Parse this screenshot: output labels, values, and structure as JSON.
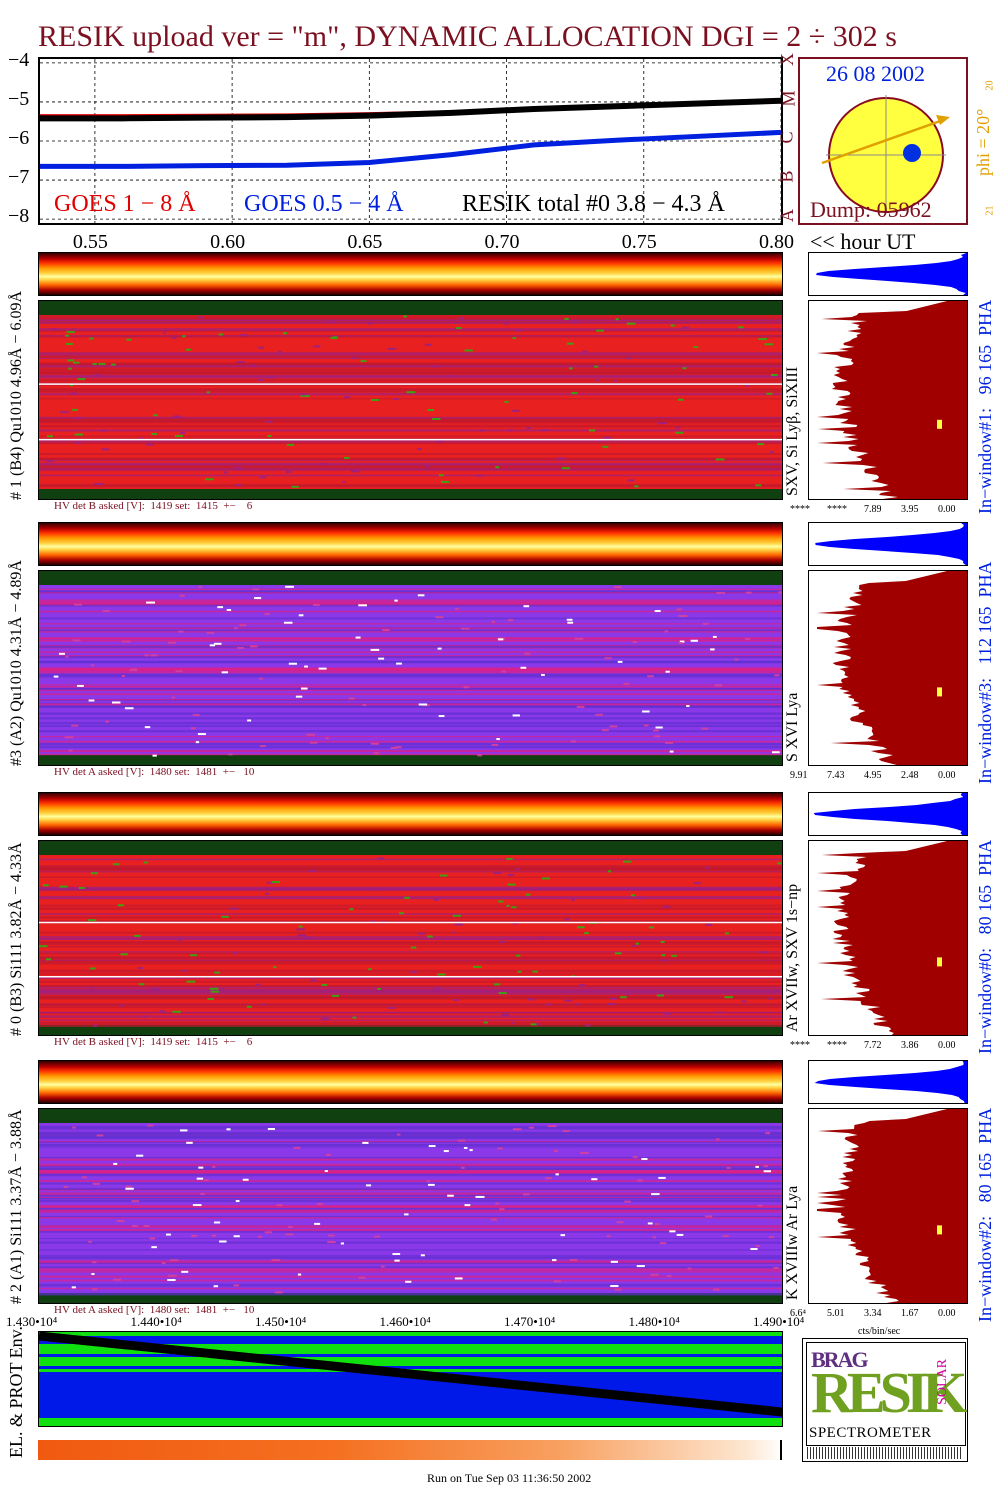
{
  "title": "RESIK upload ver = \"m\", DYNAMIC ALLOCATION  DGI =   2 ÷ 302 s",
  "colors": {
    "title": "#7a1020",
    "goes_long": "#e00000",
    "goes_short": "#0020e0",
    "resik": "#000000",
    "pha_top": "#0000ff",
    "pha_main": "#a00000",
    "env_green": "#10e010",
    "env_blue": "#0018e8",
    "sun": "#ffff40",
    "sun_edge": "#8a0a20",
    "phi": "#e0a000"
  },
  "lightcurve": {
    "y_ticks": [
      "−4",
      "−5",
      "−6",
      "−7",
      "−8"
    ],
    "x_ticks": [
      "0.55",
      "0.60",
      "0.65",
      "0.70",
      "0.75",
      "0.80"
    ],
    "x_axis_suffix": "<< hour UT",
    "class_labels": [
      "X",
      "M",
      "C",
      "B",
      "A"
    ],
    "legend": [
      {
        "text": "GOES 1 − 8 Å",
        "color": "#e00000"
      },
      {
        "text": "GOES 0.5 − 4 Å",
        "color": "#0020e0"
      },
      {
        "text": "RESIK total #0  3.8 − 4.3 Å",
        "color": "#000000"
      }
    ]
  },
  "chart_data": {
    "type": "line",
    "x": [
      0.53,
      0.56,
      0.59,
      0.62,
      0.65,
      0.68,
      0.71,
      0.74,
      0.77,
      0.8
    ],
    "xlim": [
      0.53,
      0.8
    ],
    "ylim": [
      -8.1,
      -3.9
    ],
    "xlabel": "<< hour UT",
    "series": [
      {
        "name": "GOES 1 − 8 Å",
        "values": [
          -5.35,
          -5.35,
          -5.34,
          -5.33,
          -5.3,
          -5.25,
          -5.15,
          -5.08,
          -5.01,
          -4.95
        ]
      },
      {
        "name": "GOES 0.5 − 4 Å",
        "values": [
          -6.65,
          -6.65,
          -6.63,
          -6.62,
          -6.55,
          -6.35,
          -6.1,
          -5.98,
          -5.88,
          -5.78
        ]
      },
      {
        "name": "RESIK total #0  3.8 − 4.3 Å",
        "values": [
          -5.42,
          -5.42,
          -5.4,
          -5.39,
          -5.35,
          -5.28,
          -5.18,
          -5.11,
          -5.04,
          -4.97
        ]
      }
    ]
  },
  "sun": {
    "date": "26 08 2002",
    "dump": "Dump: 05962",
    "phi": "phi = 20°",
    "phi_ticks": [
      "20",
      "21"
    ]
  },
  "panels": [
    {
      "label": "# 1 (B4) Qu1010  4.96Å − 6.09Å",
      "line_id": "SXV, Si Lyβ, SiXIII",
      "window": "In−window#1:   96 165  PHA",
      "hv": "HV det B asked [V]:  1419 set:  1415  +−    6",
      "pha_ticks": [
        "****",
        "****",
        "7.89",
        "3.95",
        "0.00"
      ]
    },
    {
      "label": "#3 (A2) Qu1010  4.31Å − 4.89Å",
      "line_id": "S XVI Lya",
      "window": "In−window#3:   112 165  PHA",
      "hv": "HV det A asked [V]:  1480 set:  1481  +−   10",
      "pha_ticks": [
        "9.91",
        "7.43",
        "4.95",
        "2.48",
        "0.00"
      ]
    },
    {
      "label": "# 0 (B3) Si111  3.82Å − 4.33Å",
      "line_id": "Ar XVIIw,  SXV 1s−np",
      "window": "In−window#0:   80 165  PHA",
      "hv": "HV det B asked [V]:  1419 set:  1415  +−    6",
      "pha_ticks": [
        "****",
        "****",
        "7.72",
        "3.86",
        "0.00"
      ]
    },
    {
      "label": "# 2 (A1) Si111  3.37Å − 3.88Å",
      "line_id": "K XVIIIw  Ar Lya",
      "window": "In−window#2:   80 165  PHA",
      "hv": "HV det A asked [V]:  1480 set:  1481  +−   10",
      "pha_ticks": [
        "6.6⁴",
        "5.01",
        "3.34",
        "1.67",
        "0.00"
      ]
    }
  ],
  "pha_axis_label": "cts/bin/sec",
  "env": {
    "label": "EL. & PROT Env.",
    "x_ticks": [
      "1.430•10⁴",
      "1.440•10⁴",
      "1.450•10⁴",
      "1.460•10⁴",
      "1.470•10⁴",
      "1.480•10⁴",
      "1.490•10⁴"
    ]
  },
  "logo": {
    "big": "RESIK",
    "top_left": "BRAG",
    "side": "SOLAR",
    "sub": "SPECTROMETER"
  },
  "footer": "Run on Tue Sep 03 11:36:50 2002"
}
